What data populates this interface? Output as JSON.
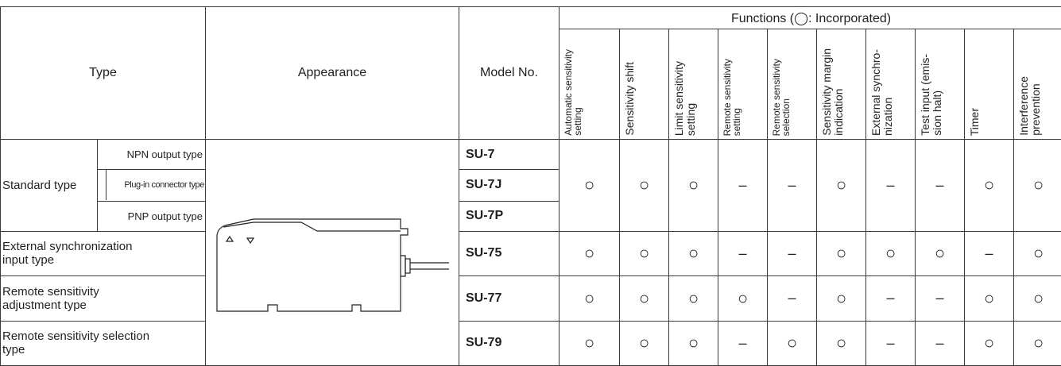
{
  "table": {
    "headers": {
      "type": "Type",
      "appearance": "Appearance",
      "model": "Model No.",
      "functions": "Functions (◯: Incorporated)",
      "function_names": [
        "Automatic sensitivity\nsetting",
        "Sensitivity shift",
        "Limit sensitivity\nsetting",
        "Remote sensitivity\nsetting",
        "Remote sensitivity\nselection",
        "Sensitivity margin\nindication",
        "External synchro-\nnization",
        "Test input (emis-\nsion halt)",
        "Timer",
        "Interference\nprevention"
      ]
    },
    "rows": [
      {
        "type": "Standard type",
        "variants": [
          {
            "subtype": "NPN output type",
            "model": "SU-7"
          },
          {
            "subtype": "Plug-in connector type",
            "model": "SU-7J"
          },
          {
            "subtype": "PNP output type",
            "model": "SU-7P"
          }
        ],
        "functions": [
          "○",
          "○",
          "○",
          "–",
          "–",
          "○",
          "–",
          "–",
          "○",
          "○"
        ]
      },
      {
        "type": "External synchronization\ninput type",
        "model": "SU-75",
        "functions": [
          "○",
          "○",
          "○",
          "–",
          "–",
          "○",
          "○",
          "○",
          "–",
          "○"
        ]
      },
      {
        "type": "Remote sensitivity\nadjustment type",
        "model": "SU-77",
        "functions": [
          "○",
          "○",
          "○",
          "○",
          "–",
          "○",
          "–",
          "–",
          "○",
          "○"
        ]
      },
      {
        "type": "Remote sensitivity selection\ntype",
        "model": "SU-79",
        "functions": [
          "○",
          "○",
          "○",
          "–",
          "○",
          "○",
          "–",
          "–",
          "○",
          "○"
        ]
      }
    ]
  }
}
